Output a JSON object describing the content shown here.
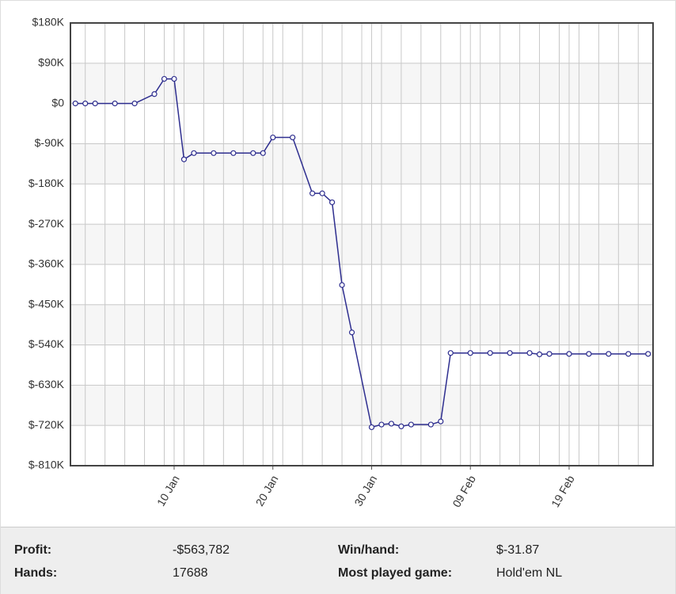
{
  "chart_data": {
    "type": "line",
    "x": [
      0,
      1,
      2,
      4,
      6,
      8,
      9,
      10,
      11,
      12,
      14,
      16,
      18,
      19,
      20,
      22,
      24,
      25,
      26,
      27,
      28,
      30,
      31,
      32,
      33,
      34,
      36,
      37,
      38,
      40,
      42,
      44,
      46,
      47,
      48,
      50,
      52,
      54,
      56,
      58
    ],
    "series": [
      {
        "color": "#2e2e8f",
        "values": [
          0,
          0,
          0,
          0,
          0,
          21000,
          55000,
          55000,
          -125000,
          -111000,
          -111000,
          -111000,
          -111000,
          -111000,
          -76000,
          -76000,
          -201000,
          -201000,
          -221000,
          -406000,
          -512000,
          -724000,
          -718000,
          -716000,
          -722000,
          -718000,
          -718000,
          -711000,
          -558000,
          -558000,
          -558000,
          -558000,
          -558000,
          -561000,
          -560000,
          -560000,
          -560000,
          -560000,
          -560000,
          -560000
        ]
      }
    ],
    "xlim": [
      -0.5,
      58.5
    ],
    "xticks": [
      {
        "value": 10,
        "label": "10 Jan"
      },
      {
        "value": 20,
        "label": "20 Jan"
      },
      {
        "value": 30,
        "label": "30 Jan"
      },
      {
        "value": 40,
        "label": "09 Feb"
      },
      {
        "value": 50,
        "label": "19 Feb"
      }
    ],
    "xminorticks": [
      1,
      3,
      5,
      7,
      9,
      11,
      13,
      15,
      17,
      19,
      21,
      23,
      25,
      27,
      29,
      31,
      33,
      35,
      37,
      39,
      41,
      43,
      45,
      47,
      49,
      51,
      53,
      55,
      57
    ],
    "ylim": [
      -810000,
      180000
    ],
    "yticks": [
      {
        "value": 180000,
        "label": "$180K"
      },
      {
        "value": 90000,
        "label": "$90K"
      },
      {
        "value": 0,
        "label": "$0"
      },
      {
        "value": -90000,
        "label": "$-90K"
      },
      {
        "value": -180000,
        "label": "$-180K"
      },
      {
        "value": -270000,
        "label": "$-270K"
      },
      {
        "value": -360000,
        "label": "$-360K"
      },
      {
        "value": -450000,
        "label": "$-450K"
      },
      {
        "value": -540000,
        "label": "$-540K"
      },
      {
        "value": -630000,
        "label": "$-630K"
      },
      {
        "value": -720000,
        "label": "$-720K"
      },
      {
        "value": -810000,
        "label": "$-810K"
      }
    ],
    "grid": true
  },
  "stats": {
    "rows": [
      [
        {
          "label": "Profit:",
          "value": "-$563,782"
        },
        {
          "label": "Win/hand:",
          "value": "$-31.87"
        }
      ],
      [
        {
          "label": "Hands:",
          "value": "17688"
        },
        {
          "label": "Most played game:",
          "value": "Hold'em NL"
        }
      ]
    ]
  }
}
